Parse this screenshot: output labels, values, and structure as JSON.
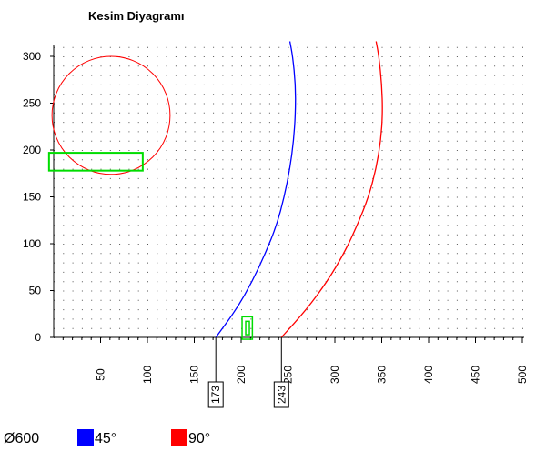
{
  "chart_data": {
    "type": "line",
    "title": "Kesim Diyagramı",
    "xlabel": "",
    "ylabel": "",
    "xlim": [
      0,
      500
    ],
    "ylim": [
      0,
      300
    ],
    "x_ticks": [
      50,
      100,
      150,
      200,
      250,
      300,
      350,
      400,
      450,
      500
    ],
    "y_ticks": [
      0,
      50,
      100,
      150,
      200,
      250,
      300
    ],
    "grid": "dotted",
    "diameter_label": "Ø600",
    "series": [
      {
        "name": "45°",
        "color": "#0000ff",
        "points": [
          [
            173,
            0
          ],
          [
            195,
            30
          ],
          [
            212,
            60
          ],
          [
            226,
            90
          ],
          [
            238,
            120
          ],
          [
            246,
            150
          ],
          [
            252,
            180
          ],
          [
            256,
            210
          ],
          [
            258,
            240
          ],
          [
            258,
            270
          ],
          [
            255,
            300
          ],
          [
            252,
            316
          ]
        ]
      },
      {
        "name": "90°",
        "color": "#ff0000",
        "points": [
          [
            243,
            0
          ],
          [
            270,
            30
          ],
          [
            292,
            60
          ],
          [
            310,
            90
          ],
          [
            324,
            120
          ],
          [
            336,
            150
          ],
          [
            344,
            180
          ],
          [
            349,
            210
          ],
          [
            351,
            240
          ],
          [
            350,
            270
          ],
          [
            347,
            300
          ],
          [
            344,
            316
          ]
        ]
      }
    ],
    "circle": {
      "cx": 0,
      "cy": 237,
      "r": 63,
      "color": "#ff0000"
    },
    "green_rect": {
      "x0": -5,
      "x1": 95,
      "y0": 178,
      "y1": 197,
      "color": "#00dd00"
    },
    "green_rect_small": {
      "x0": 201,
      "x1": 212,
      "y0": -2,
      "y1": 22,
      "color": "#00dd00"
    },
    "markers": [
      {
        "x": 173,
        "label": "173"
      },
      {
        "x": 243,
        "label": "243"
      }
    ]
  },
  "legend": {
    "diameter": "Ø600",
    "items": [
      {
        "label": "45°",
        "color": "#0000ff"
      },
      {
        "label": "90°",
        "color": "#ff0000"
      }
    ]
  }
}
